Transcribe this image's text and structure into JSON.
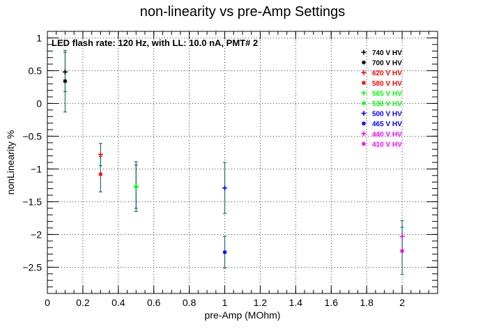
{
  "chart_data": {
    "type": "scatter",
    "title": "non-linearity vs pre-Amp Settings",
    "annotation": "LED flash rate: 120 Hz, with LL: 10.0 nA, PMT# 2",
    "xlabel": "pre-Amp (MOhm)",
    "ylabel": "nonLinearity %",
    "xlim": [
      0,
      2.2
    ],
    "ylim": [
      -2.9,
      1.1
    ],
    "x_ticks": [
      0,
      0.2,
      0.4,
      0.6,
      0.8,
      1,
      1.2,
      1.4,
      1.6,
      1.8,
      2
    ],
    "x_tick_labels": [
      "0",
      "0.2",
      "0.4",
      "0.6",
      "0.8",
      "1",
      "1.2",
      "1.4",
      "1.6",
      "1.8",
      "2"
    ],
    "y_ticks": [
      1,
      0.5,
      0,
      -0.5,
      -1,
      -1.5,
      -2,
      -2.5
    ],
    "y_tick_labels": [
      "1",
      "0.5",
      "0",
      "−0.5",
      "−1",
      "−1.5",
      "−2",
      "−2.5"
    ],
    "grid": true,
    "legend_position": "top-right",
    "error_bar_color": "#1e6e7a",
    "series": [
      {
        "name": "740 V HV",
        "color": "#000000",
        "marker": "+",
        "x": 0.1,
        "y": 0.48,
        "yerr": 0.3
      },
      {
        "name": "700 V HV",
        "color": "#000000",
        "marker": "*",
        "x": 0.1,
        "y": 0.34,
        "yerr": 0.47
      },
      {
        "name": "620 V HV",
        "color": "#ff0000",
        "marker": "+",
        "x": 0.3,
        "y": -0.78,
        "yerr": 0.17
      },
      {
        "name": "580 V HV",
        "color": "#ff0000",
        "marker": "*",
        "x": 0.3,
        "y": -1.08,
        "yerr": 0.27
      },
      {
        "name": "565 V HV",
        "color": "#00ff00",
        "marker": "+",
        "x": 0.5,
        "y": -1.27,
        "yerr": 0.33
      },
      {
        "name": "530 V HV",
        "color": "#00ff00",
        "marker": "*",
        "x": 0.5,
        "y": -1.27,
        "yerr": 0.38
      },
      {
        "name": "500 V HV",
        "color": "#0000ff",
        "marker": "+",
        "x": 1.0,
        "y": -1.29,
        "yerr": 0.39
      },
      {
        "name": "465 V HV",
        "color": "#0000ff",
        "marker": "*",
        "x": 1.0,
        "y": -2.27,
        "yerr": 0.24
      },
      {
        "name": "440 V HV",
        "color": "#ff00ff",
        "marker": "+",
        "x": 2.0,
        "y": -2.03,
        "yerr": 0.24
      },
      {
        "name": "410 V HV",
        "color": "#ff00ff",
        "marker": "*",
        "x": 2.0,
        "y": -2.25,
        "yerr": 0.36
      }
    ]
  }
}
